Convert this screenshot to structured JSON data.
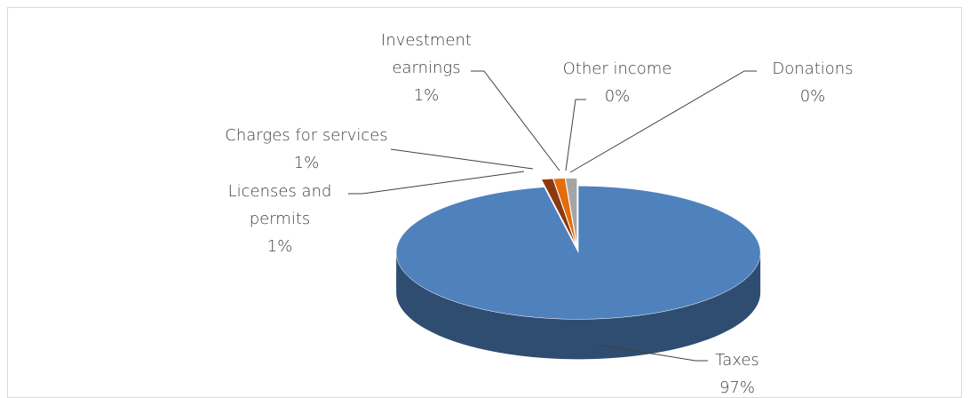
{
  "chart_data": {
    "type": "pie",
    "categories": [
      "Taxes",
      "Licenses and permits",
      "Charges for services",
      "Investment earnings",
      "Other income",
      "Donations"
    ],
    "values": [
      97,
      1,
      1,
      1,
      0,
      0
    ],
    "value_labels": [
      "97%",
      "1%",
      "1%",
      "1%",
      "0%",
      "0%"
    ],
    "colors": [
      "#4f81bd",
      "#8b3a0f",
      "#e46c0a",
      "#a5a5a5",
      "#f0b400",
      "#4bacc6"
    ]
  }
}
